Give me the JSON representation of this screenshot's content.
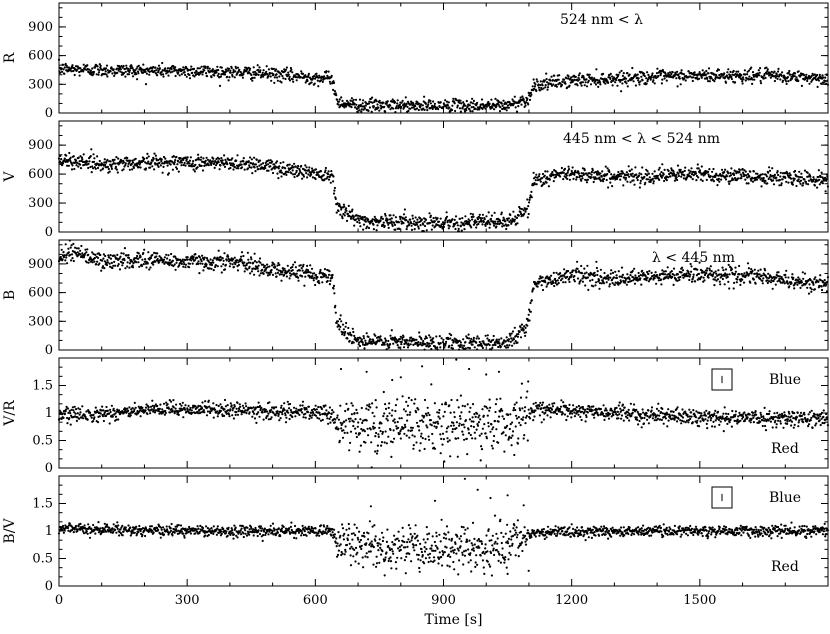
{
  "chart_data": [
    {
      "type": "scatter",
      "ylabel": "R",
      "xlim": [
        0,
        1800
      ],
      "ylim": [
        0,
        1150
      ],
      "yticks": [
        0,
        300,
        600,
        900
      ],
      "annotation": "524 nm < λ",
      "trend": [
        [
          0,
          460
        ],
        [
          150,
          445
        ],
        [
          300,
          440
        ],
        [
          450,
          420
        ],
        [
          600,
          370
        ],
        [
          640,
          360
        ],
        [
          650,
          120
        ],
        [
          700,
          80
        ],
        [
          900,
          70
        ],
        [
          1050,
          80
        ],
        [
          1100,
          150
        ],
        [
          1110,
          290
        ],
        [
          1200,
          340
        ],
        [
          1350,
          370
        ],
        [
          1500,
          390
        ],
        [
          1650,
          390
        ],
        [
          1800,
          360
        ]
      ],
      "scatter_sd": 35,
      "outlier_points": []
    },
    {
      "type": "scatter",
      "ylabel": "V",
      "xlim": [
        0,
        1800
      ],
      "ylim": [
        0,
        1150
      ],
      "yticks": [
        0,
        300,
        600,
        900
      ],
      "annotation": "445 nm < λ < 524 nm",
      "trend": [
        [
          0,
          720
        ],
        [
          50,
          740
        ],
        [
          100,
          700
        ],
        [
          200,
          720
        ],
        [
          300,
          720
        ],
        [
          450,
          710
        ],
        [
          550,
          640
        ],
        [
          640,
          590
        ],
        [
          650,
          290
        ],
        [
          690,
          140
        ],
        [
          720,
          110
        ],
        [
          900,
          100
        ],
        [
          1050,
          110
        ],
        [
          1070,
          140
        ],
        [
          1100,
          250
        ],
        [
          1110,
          540
        ],
        [
          1200,
          610
        ],
        [
          1300,
          570
        ],
        [
          1500,
          600
        ],
        [
          1650,
          570
        ],
        [
          1800,
          540
        ]
      ],
      "scatter_sd": 40,
      "outlier_points": []
    },
    {
      "type": "scatter",
      "ylabel": "B",
      "xlim": [
        0,
        1800
      ],
      "ylim": [
        0,
        1150
      ],
      "yticks": [
        0,
        300,
        600,
        900
      ],
      "annotation": "λ < 445 nm",
      "trend": [
        [
          0,
          930
        ],
        [
          30,
          1050
        ],
        [
          100,
          920
        ],
        [
          200,
          950
        ],
        [
          300,
          920
        ],
        [
          400,
          930
        ],
        [
          500,
          840
        ],
        [
          640,
          770
        ],
        [
          650,
          290
        ],
        [
          700,
          90
        ],
        [
          900,
          70
        ],
        [
          1050,
          80
        ],
        [
          1080,
          180
        ],
        [
          1100,
          290
        ],
        [
          1110,
          680
        ],
        [
          1200,
          800
        ],
        [
          1300,
          730
        ],
        [
          1500,
          800
        ],
        [
          1650,
          760
        ],
        [
          1800,
          680
        ]
      ],
      "scatter_sd": 45,
      "outlier_points": []
    },
    {
      "type": "scatter",
      "ylabel": "V/R",
      "xlim": [
        0,
        1800
      ],
      "ylim": [
        0,
        2
      ],
      "yticks": [
        0,
        0.5,
        1,
        1.5
      ],
      "tick_labels": [
        "0",
        "0.5",
        "1",
        "1.5"
      ],
      "annotation_top": "Blue",
      "annotation_bottom": "Red",
      "error_bar_sd": 0.13,
      "trend": [
        [
          0,
          0.95
        ],
        [
          300,
          1.08
        ],
        [
          600,
          1.0
        ],
        [
          640,
          1.0
        ],
        [
          650,
          0.75
        ],
        [
          1050,
          0.8
        ],
        [
          1100,
          1.0
        ],
        [
          1110,
          1.08
        ],
        [
          1300,
          1.0
        ],
        [
          1500,
          0.92
        ],
        [
          1800,
          0.9
        ]
      ],
      "scatter_sd": 0.07,
      "noisy_sd": 0.25,
      "noisy_range": [
        650,
        1100
      ],
      "outlier_points": [
        [
          660,
          1.8
        ],
        [
          720,
          1.75
        ],
        [
          800,
          1.65
        ],
        [
          850,
          1.85
        ],
        [
          930,
          1.97
        ],
        [
          960,
          1.8
        ],
        [
          1000,
          1.7
        ],
        [
          1030,
          1.75
        ],
        [
          780,
          1.6
        ],
        [
          740,
          0.3
        ],
        [
          880,
          0.35
        ]
      ]
    },
    {
      "type": "scatter",
      "ylabel": "B/V",
      "xlim": [
        0,
        1800
      ],
      "ylim": [
        0,
        2
      ],
      "yticks": [
        0,
        0.5,
        1,
        1.5
      ],
      "tick_labels": [
        "0",
        "0.5",
        "1",
        "1.5"
      ],
      "xticks": [
        0,
        300,
        600,
        900,
        1200,
        1500
      ],
      "xlabel": "Time [s]",
      "annotation_top": "Blue",
      "annotation_bottom": "Red",
      "error_bar_sd": 0.13,
      "trend": [
        [
          0,
          1.05
        ],
        [
          300,
          1.0
        ],
        [
          600,
          1.0
        ],
        [
          640,
          1.0
        ],
        [
          650,
          0.78
        ],
        [
          900,
          0.65
        ],
        [
          1050,
          0.7
        ],
        [
          1100,
          0.85
        ],
        [
          1110,
          0.98
        ],
        [
          1400,
          1.0
        ],
        [
          1800,
          1.0
        ]
      ],
      "scatter_sd": 0.05,
      "noisy_sd": 0.2,
      "noisy_range": [
        650,
        1100
      ],
      "outlier_points": [
        [
          950,
          1.95
        ],
        [
          980,
          1.75
        ],
        [
          1010,
          1.6
        ],
        [
          1050,
          1.65
        ],
        [
          880,
          1.55
        ],
        [
          730,
          1.45
        ],
        [
          1050,
          0.22
        ]
      ]
    }
  ]
}
